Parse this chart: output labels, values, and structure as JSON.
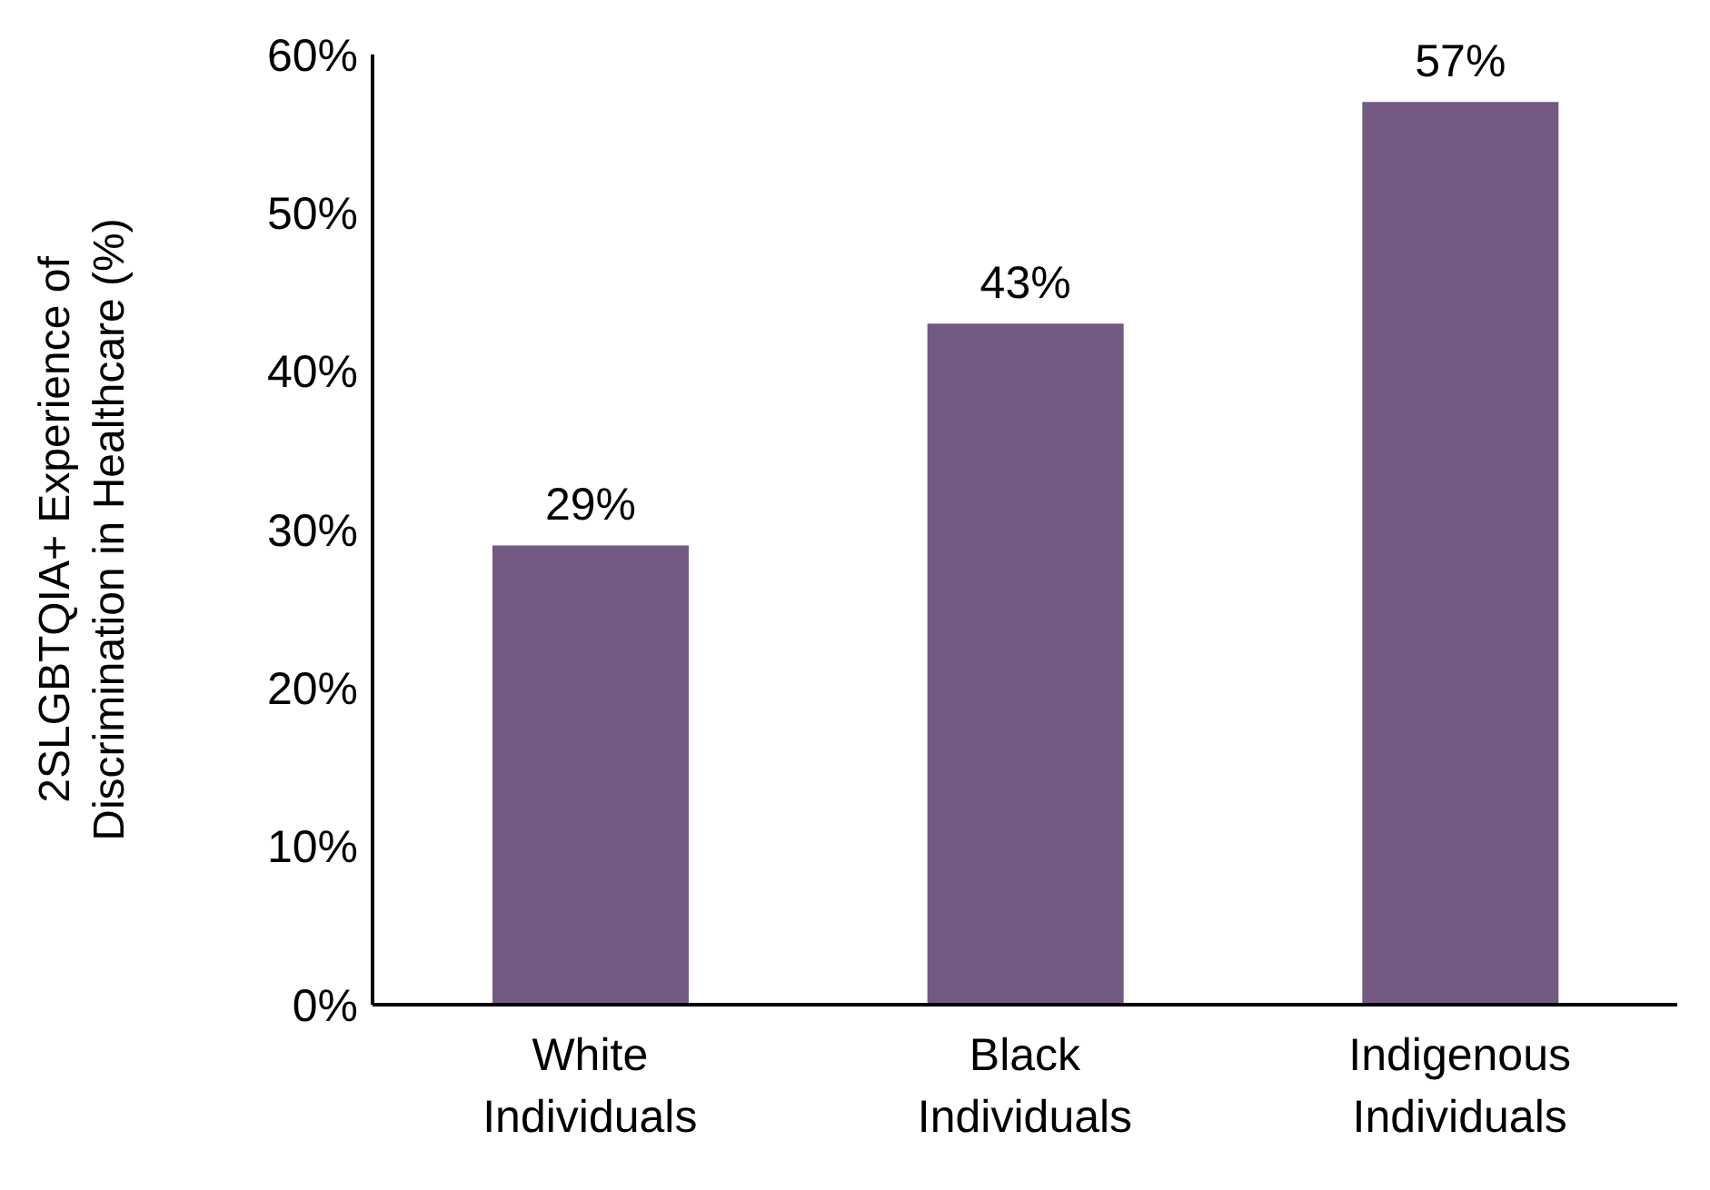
{
  "chart_data": {
    "type": "bar",
    "ylabel": "2SLGBTQIA+ Experience of Discrimination in Healthcare (%)",
    "categories": [
      "White Individuals",
      "Black Individuals",
      "Indigenous Individuals"
    ],
    "values": [
      29,
      43,
      57
    ],
    "colors": [
      "#725a83",
      "#725a83",
      "#725a83"
    ],
    "value_labels": [
      "29%",
      "43%",
      "57%"
    ],
    "ylim": [
      0,
      60
    ],
    "yticks": [
      {
        "value": 0,
        "label": "0%"
      },
      {
        "value": 10,
        "label": "10%"
      },
      {
        "value": 20,
        "label": "20%"
      },
      {
        "value": 30,
        "label": "30%"
      },
      {
        "value": 40,
        "label": "40%"
      },
      {
        "value": 50,
        "label": "50%"
      },
      {
        "value": 60,
        "label": "60%"
      }
    ],
    "grid": false,
    "legend": false
  }
}
